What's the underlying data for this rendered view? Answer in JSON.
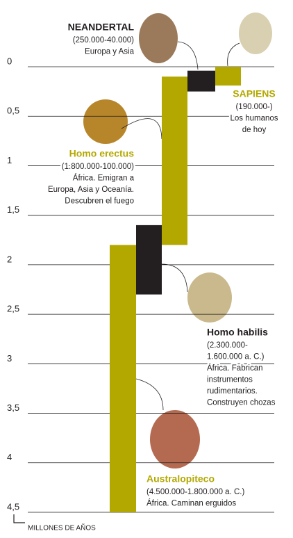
{
  "chart_data": {
    "type": "range-bar",
    "y_label": "MILLONES DE AÑOS",
    "ylim": [
      0,
      4.5
    ],
    "yticks": [
      0,
      {
        "value": 0.5,
        "label": "0,5"
      },
      1,
      {
        "value": 1.5,
        "label": "1,5"
      },
      2,
      {
        "value": 2.5,
        "label": "2,5"
      },
      3,
      {
        "value": 3.5,
        "label": "3,5"
      },
      4,
      {
        "value": 4.5,
        "label": "4,5"
      }
    ],
    "grid": true,
    "series": [
      {
        "name": "Australopiteco",
        "color": "#b3a800",
        "values": [
          1.8,
          4.5
        ],
        "lines": [
          "(4.500.000-1.800.000 a. C.)",
          "África. Caminan erguidos"
        ]
      },
      {
        "name": "Homo habilis",
        "color": "#231f20",
        "values": [
          1.6,
          2.3
        ],
        "lines": [
          "(2.300.000-",
          "1.600.000 a. C.)",
          "África. Fabrican",
          "instrumentos",
          "rudimentarios.",
          "Construyen chozas"
        ]
      },
      {
        "name": "Homo erectus",
        "color": "#b3a800",
        "values": [
          0.1,
          1.8
        ],
        "lines": [
          "(1.800.000-100.000)",
          "África. Emigran a",
          "Europa, Asia y Oceanía.",
          "Descubren el fuego"
        ]
      },
      {
        "name": "NEANDERTAL",
        "color": "#231f20",
        "values": [
          0.04,
          0.25
        ],
        "lines": [
          "(250.000-40.000)",
          "Europa y Asia"
        ]
      },
      {
        "name": "SAPIENS",
        "color": "#b3a800",
        "values": [
          0,
          0.19
        ],
        "lines": [
          "(190.000-)",
          "Los humanos",
          "de hoy"
        ]
      }
    ]
  }
}
